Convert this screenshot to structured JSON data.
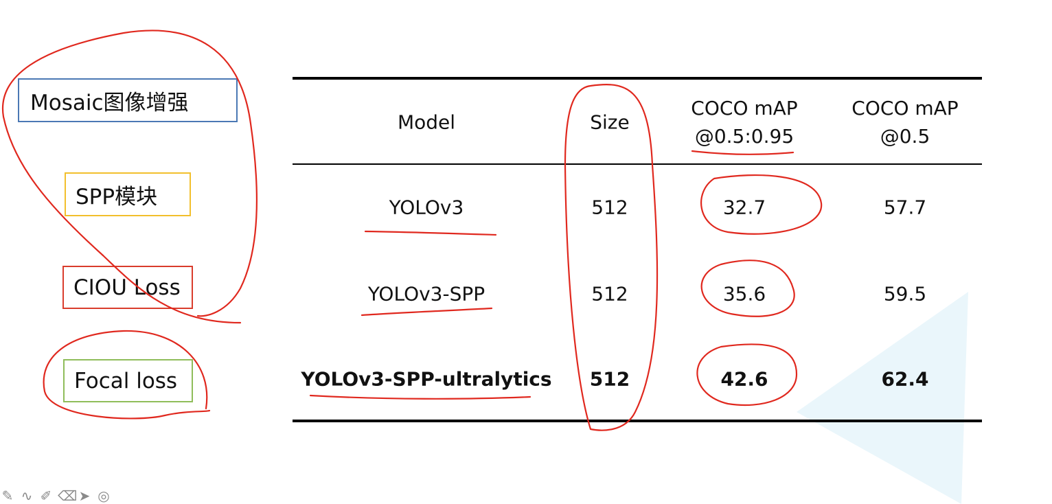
{
  "sidebar": {
    "items": [
      {
        "label": "Mosaic图像增强",
        "color": "#4a78b4"
      },
      {
        "label": "SPP模块",
        "color": "#f2bf2c"
      },
      {
        "label": "CIOU Loss",
        "color": "#d93c2c"
      },
      {
        "label": "Focal loss",
        "color": "#8fbd5a"
      }
    ]
  },
  "table": {
    "headers": [
      "Model",
      "Size",
      "COCO mAP",
      "@0.5:0.95",
      "COCO mAP",
      "@0.5"
    ],
    "rows": [
      {
        "model": "YOLOv3",
        "size": "512",
        "map_5095": "32.7",
        "map_05": "57.7",
        "bold": false
      },
      {
        "model": "YOLOv3-SPP",
        "size": "512",
        "map_5095": "35.6",
        "map_05": "59.5",
        "bold": false
      },
      {
        "model": "YOLOv3-SPP-ultralytics",
        "size": "512",
        "map_5095": "42.6",
        "map_05": "62.4",
        "bold": true
      }
    ]
  },
  "colors": {
    "annotation_ink": "#e0281e",
    "background_shape": "#eaf6fb"
  },
  "toolbar": {
    "icons": [
      "pen-icon",
      "curve-icon",
      "highlighter-icon",
      "eraser-icon",
      "pointer-icon",
      "target-icon"
    ]
  }
}
